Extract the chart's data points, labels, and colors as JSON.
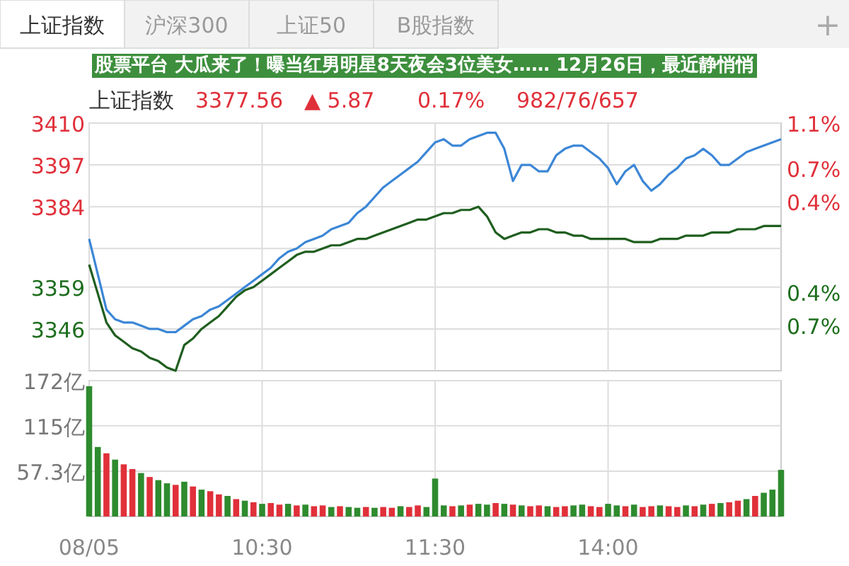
{
  "chart_data": [
    {
      "type": "line",
      "title": "上证指数",
      "annotations": [
        "上证指数",
        "沪深300",
        "上证50",
        "B股指数",
        "+",
        "3377.56",
        "▲ 5.87",
        "0.17%",
        "982/76/657",
        "股票平台 大瓜来了！曝当红男明星8天夜会3位美女…… 12月26日，最近静悄悄"
      ],
      "categories": [
        null,
        null,
        null,
        null,
        null,
        null,
        null,
        null,
        null,
        null,
        null,
        null,
        null,
        null,
        null,
        null,
        null,
        null,
        null,
        null,
        null,
        null,
        null,
        null,
        null,
        null,
        null,
        null,
        null,
        null,
        null,
        null,
        null,
        null,
        null,
        null,
        null,
        null,
        null,
        null,
        null,
        null,
        null,
        null,
        null,
        null,
        null,
        null,
        null,
        null,
        null,
        null,
        null,
        null,
        null,
        null,
        null,
        null,
        null,
        null,
        null,
        null,
        null,
        null,
        null,
        null,
        null,
        null,
        null,
        null,
        null,
        null,
        null,
        null,
        null,
        null,
        null,
        null,
        null,
        null,
        null
      ],
      "ylim": [
        3333,
        3410
      ],
      "yticks": [
        3410,
        3397,
        3384,
        {
          "value": 3371,
          "label": null
        },
        3359,
        3346
      ],
      "y2lim": [
        -1.1,
        1.1
      ],
      "y2ticks": [
        {
          "value": 1.1,
          "label": "1.1%"
        },
        {
          "value": 0.7,
          "label": "0.7%"
        },
        {
          "value": 0.4,
          "label": "0.4%"
        },
        {
          "value": -0.4,
          "label": "0.4%"
        },
        {
          "value": -0.7,
          "label": "0.7%"
        }
      ],
      "tick_labels": "y",
      "grid": true,
      "series": [
        {
          "color": "#3b86d6",
          "values": [
            3374,
            3363,
            3352,
            3349,
            3348,
            3348,
            3347,
            3346,
            3346,
            3345,
            3345,
            3347,
            3349,
            3350,
            3352,
            3353,
            3355,
            3357,
            3359,
            3361,
            3363,
            3365,
            3368,
            3370,
            3371,
            3373,
            3374,
            3375,
            3377,
            3378,
            3379,
            3382,
            3384,
            3387,
            3390,
            3392,
            3394,
            3396,
            3398,
            3401,
            3404,
            3405,
            3403,
            3403,
            3405,
            3406,
            3407,
            3407,
            3402,
            3392,
            3397,
            3397,
            3395,
            3395,
            3400,
            3402,
            3403,
            3403,
            3401,
            3399,
            3396,
            3391,
            3395,
            3397,
            3392,
            3389,
            3391,
            3394,
            3396,
            3399,
            3400,
            3402,
            3400,
            3397,
            3397,
            3399,
            3401,
            3402,
            3403,
            3404,
            3405
          ]
        },
        {
          "color": "#1f5e1f",
          "values": [
            3366,
            3357,
            3348,
            3344,
            3342,
            3340,
            3339,
            3337,
            3336,
            3334,
            3333,
            3341,
            3343,
            3346,
            3348,
            3350,
            3353,
            3356,
            3358,
            3359,
            3361,
            3363,
            3365,
            3367,
            3369,
            3370,
            3370,
            3371,
            3372,
            3372,
            3373,
            3374,
            3374,
            3375,
            3376,
            3377,
            3378,
            3379,
            3380,
            3380,
            3381,
            3382,
            3382,
            3383,
            3383,
            3384,
            3381,
            3376,
            3374,
            3375,
            3376,
            3376,
            3377,
            3377,
            3376,
            3376,
            3375,
            3375,
            3374,
            3374,
            3374,
            3374,
            3374,
            3373,
            3373,
            3373,
            3374,
            3374,
            3374,
            3375,
            3375,
            3375,
            3376,
            3376,
            3376,
            3377,
            3377,
            3377,
            3378,
            3378,
            3378
          ]
        }
      ]
    },
    {
      "type": "bar",
      "categories": [
        "08/05",
        null,
        null,
        null,
        null,
        null,
        null,
        null,
        null,
        null,
        null,
        null,
        null,
        null,
        null,
        null,
        null,
        null,
        null,
        null,
        "10:30",
        null,
        null,
        null,
        null,
        null,
        null,
        null,
        null,
        null,
        null,
        null,
        null,
        null,
        null,
        null,
        null,
        null,
        null,
        null,
        "11:30",
        null,
        null,
        null,
        null,
        null,
        null,
        null,
        null,
        null,
        null,
        null,
        null,
        null,
        null,
        null,
        null,
        null,
        null,
        null,
        "14:00",
        null,
        null,
        null,
        null,
        null,
        null,
        null,
        null,
        null,
        null,
        null,
        null,
        null,
        null,
        null,
        null,
        null,
        null,
        null,
        null
      ],
      "ylim": [
        0,
        172
      ],
      "yticks": [
        {
          "value": 57.3,
          "label": "57.3亿"
        },
        {
          "value": 115,
          "label": "115亿"
        },
        {
          "value": 172,
          "label": "172亿"
        }
      ],
      "grid": true,
      "values": [
        165,
        88,
        80,
        72,
        66,
        60,
        55,
        50,
        46,
        42,
        40,
        44,
        38,
        34,
        32,
        28,
        26,
        22,
        20,
        18,
        16,
        17,
        15,
        16,
        14,
        15,
        13,
        14,
        12,
        13,
        12,
        11,
        12,
        11,
        12,
        11,
        13,
        12,
        14,
        12,
        48,
        14,
        13,
        14,
        15,
        16,
        15,
        17,
        16,
        15,
        14,
        13,
        14,
        13,
        12,
        13,
        14,
        15,
        13,
        12,
        16,
        14,
        13,
        15,
        12,
        13,
        14,
        13,
        12,
        14,
        13,
        15,
        16,
        17,
        18,
        20,
        22,
        26,
        30,
        34,
        59
      ],
      "colors": [
        "#2e8b2e",
        "#2e8b2e",
        "#e0303a",
        "#2e8b2e",
        "#e0303a",
        "#e0303a",
        "#2e8b2e",
        "#e0303a",
        "#2e8b2e",
        "#2e8b2e",
        "#e0303a",
        "#2e8b2e",
        "#e0303a",
        "#2e8b2e",
        "#e0303a",
        "#e0303a",
        "#2e8b2e",
        "#e0303a",
        "#2e8b2e",
        "#e0303a",
        "#2e8b2e",
        "#e0303a",
        "#e0303a",
        "#2e8b2e",
        "#e0303a",
        "#2e8b2e",
        "#e0303a",
        "#e0303a",
        "#2e8b2e",
        "#e0303a",
        "#2e8b2e",
        "#2e8b2e",
        "#e0303a",
        "#2e8b2e",
        "#e0303a",
        "#e0303a",
        "#2e8b2e",
        "#e0303a",
        "#e0303a",
        "#2e8b2e",
        "#2e8b2e",
        "#2e8b2e",
        "#e0303a",
        "#2e8b2e",
        "#e0303a",
        "#2e8b2e",
        "#2e8b2e",
        "#e0303a",
        "#2e8b2e",
        "#e0303a",
        "#2e8b2e",
        "#e0303a",
        "#e0303a",
        "#2e8b2e",
        "#e0303a",
        "#e0303a",
        "#2e8b2e",
        "#2e8b2e",
        "#e0303a",
        "#e0303a",
        "#2e8b2e",
        "#2e8b2e",
        "#e0303a",
        "#2e8b2e",
        "#e0303a",
        "#e0303a",
        "#2e8b2e",
        "#e0303a",
        "#e0303a",
        "#2e8b2e",
        "#e0303a",
        "#2e8b2e",
        "#e0303a",
        "#2e8b2e",
        "#e0303a",
        "#e0303a",
        "#2e8b2e",
        "#e0303a",
        "#2e8b2e",
        "#2e8b2e",
        "#2e8b2e"
      ]
    }
  ]
}
